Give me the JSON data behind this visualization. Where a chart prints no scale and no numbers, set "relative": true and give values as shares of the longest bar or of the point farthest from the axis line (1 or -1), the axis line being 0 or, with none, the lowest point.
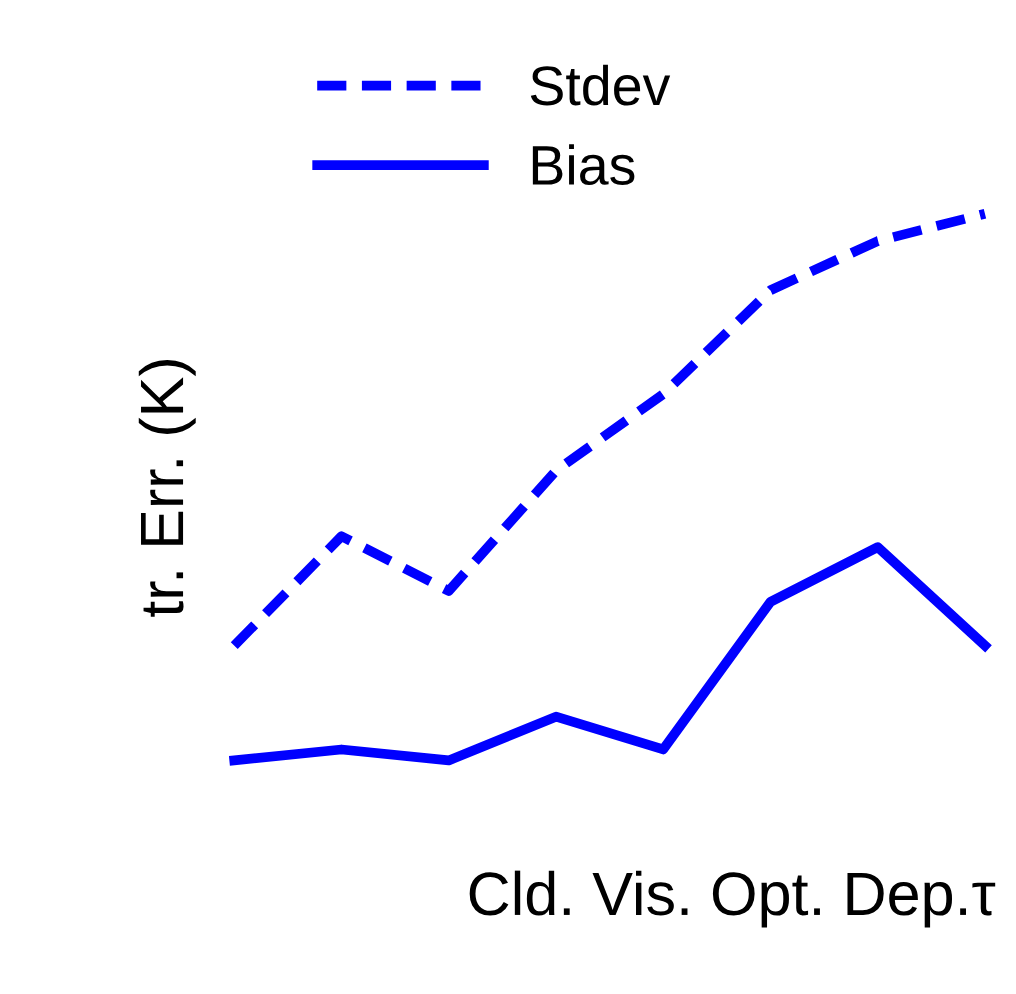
{
  "chart_data": {
    "type": "line",
    "relative": true,
    "ylabel": "tr. Err. (K)",
    "xlabel": "Cld. Vis. Opt. Dep.τ",
    "categories": [
      null,
      null,
      null,
      null,
      null,
      null,
      null,
      null
    ],
    "legend": "top",
    "marker": "none",
    "series": [
      {
        "name": "Stdev",
        "color": "#0000ff",
        "line_style": "dashed",
        "values": [
          0.21,
          0.41,
          0.31,
          0.53,
          0.67,
          0.86,
          0.95,
          1
        ]
      },
      {
        "name": "Bias",
        "color": "#0000ff",
        "line_style": "solid",
        "values": [
          0,
          0.02,
          0,
          0.08,
          0.02,
          0.29,
          0.39,
          0.21
        ]
      }
    ]
  }
}
